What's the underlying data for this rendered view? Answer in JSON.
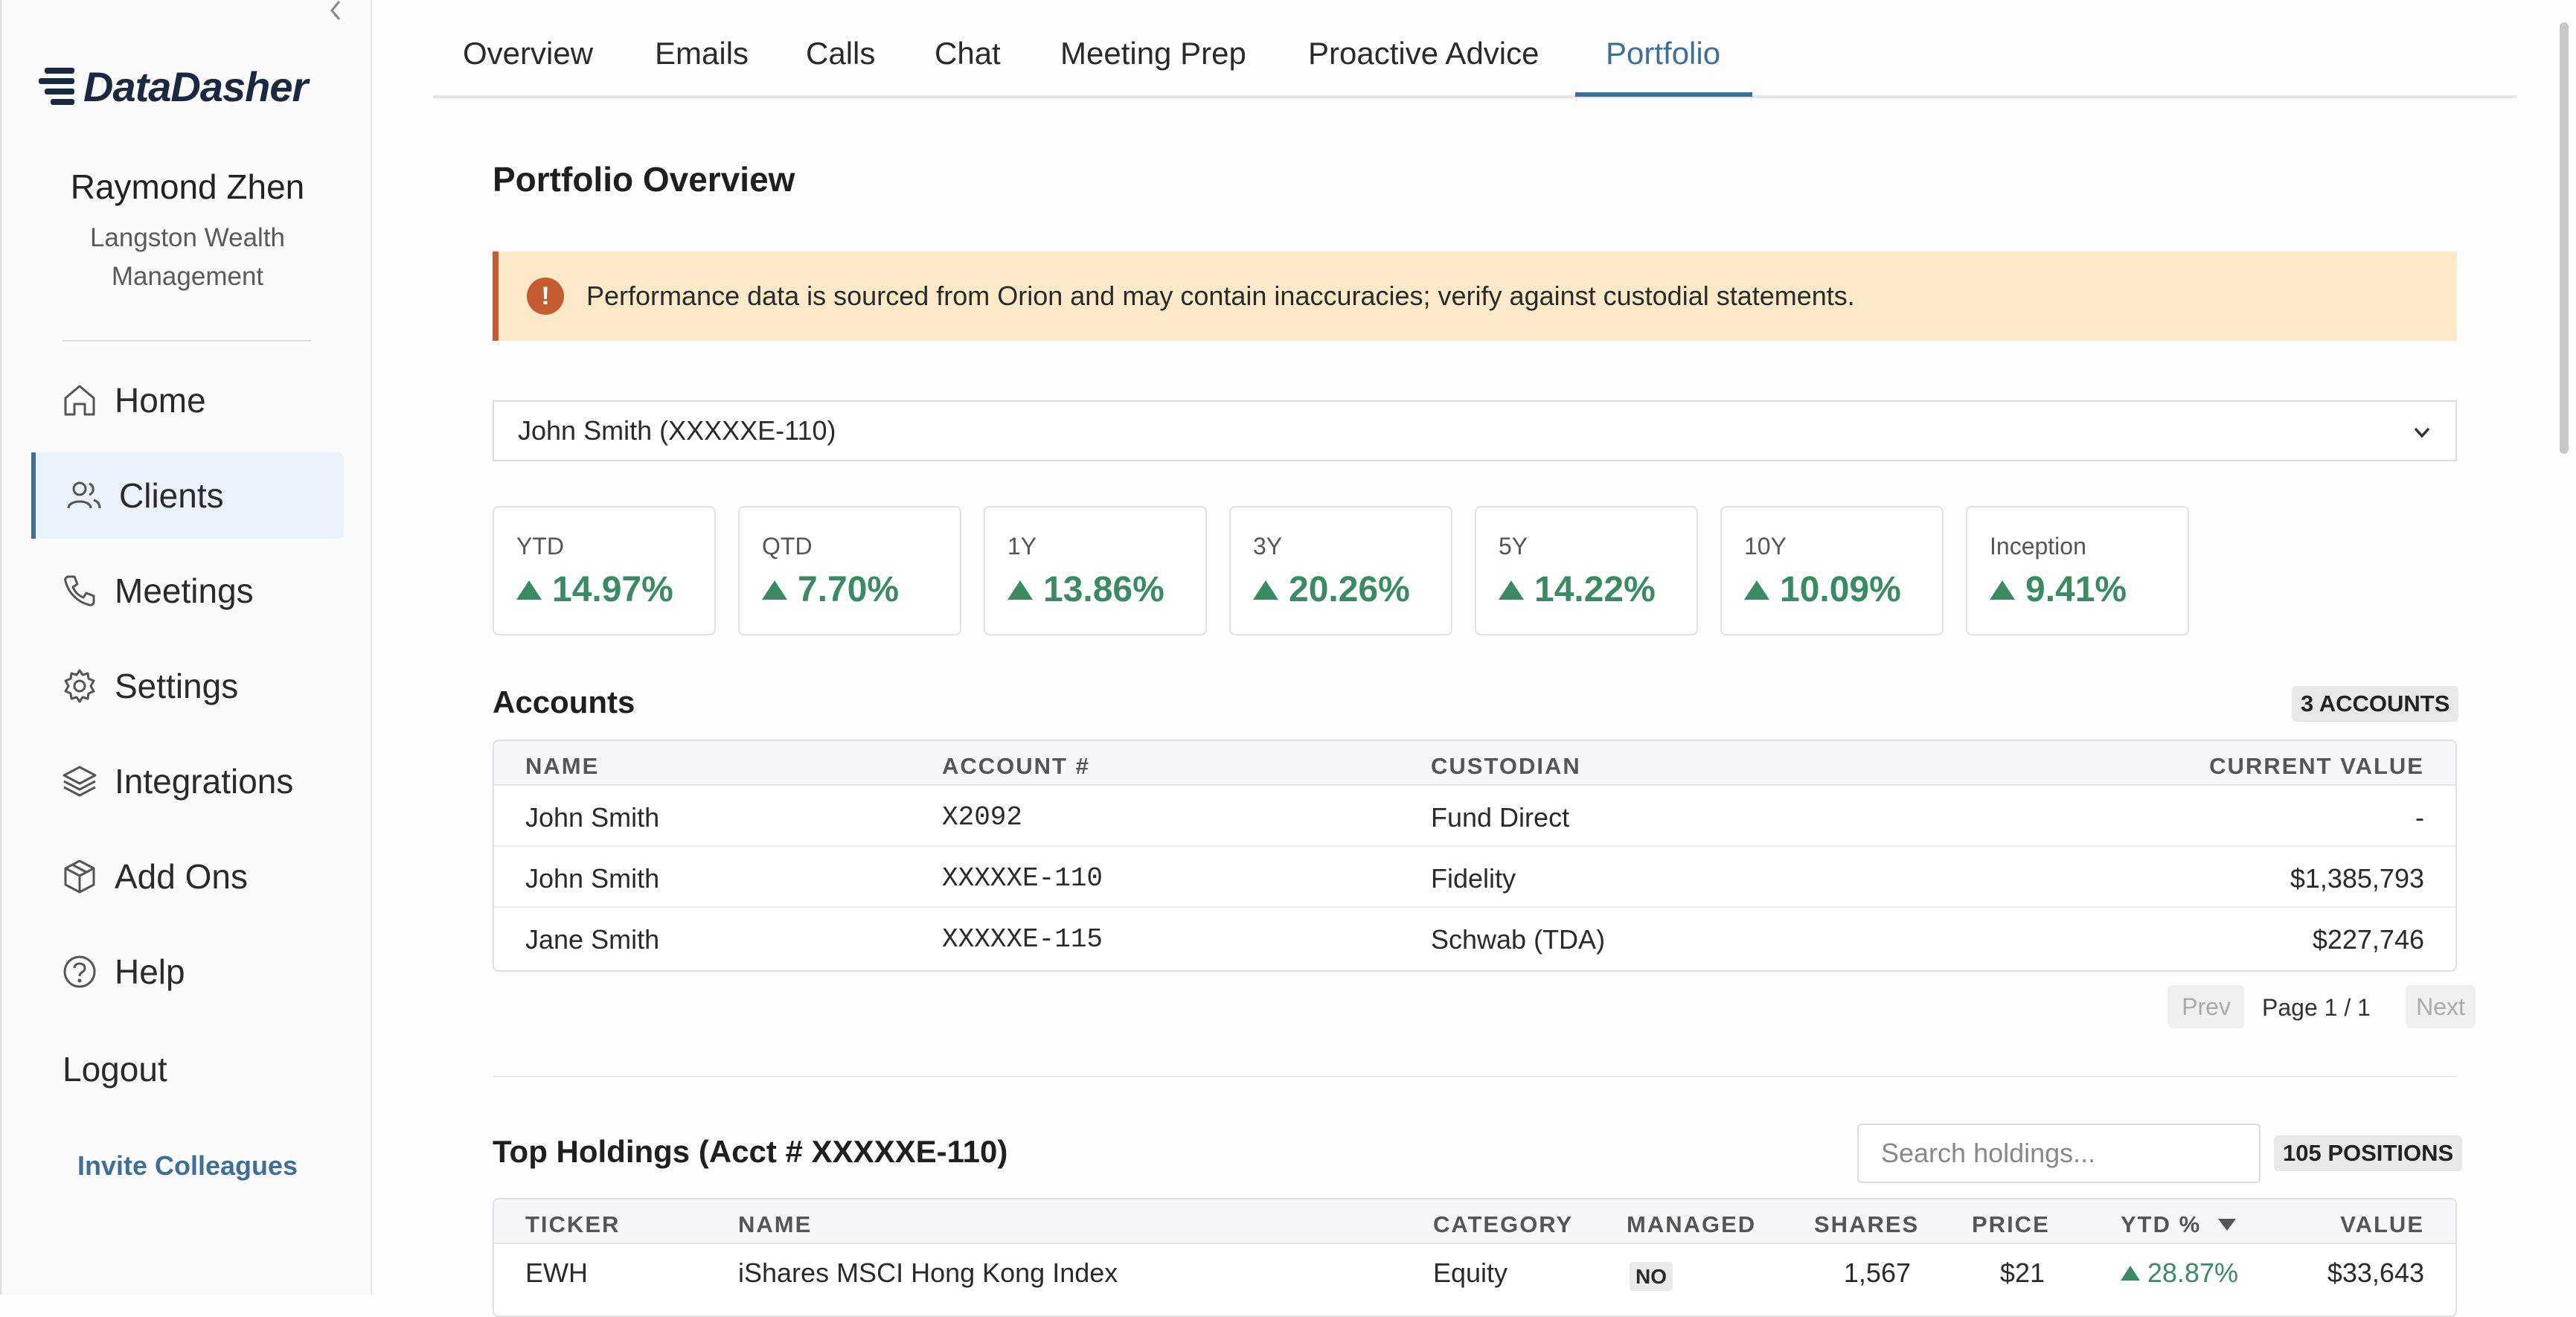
{
  "sidebar": {
    "brand": "DataDasher",
    "user_name": "Raymond Zhen",
    "org": "Langston Wealth Management",
    "nav": [
      {
        "label": "Home",
        "icon": "home-icon"
      },
      {
        "label": "Clients",
        "icon": "users-icon",
        "active": true
      },
      {
        "label": "Meetings",
        "icon": "phone-icon"
      },
      {
        "label": "Settings",
        "icon": "gear-icon"
      },
      {
        "label": "Integrations",
        "icon": "layers-icon"
      },
      {
        "label": "Add Ons",
        "icon": "package-icon"
      },
      {
        "label": "Help",
        "icon": "help-icon"
      }
    ],
    "logout": "Logout",
    "invite": "Invite Colleagues"
  },
  "tabs": [
    "Overview",
    "Emails",
    "Calls",
    "Chat",
    "Meeting Prep",
    "Proactive Advice",
    "Portfolio"
  ],
  "active_tab": "Portfolio",
  "page_title": "Portfolio Overview",
  "alert": "Performance data is sourced from Orion and may contain inaccuracies; verify against custodial statements.",
  "account_select": "John Smith (XXXXXE-110)",
  "performance": [
    {
      "label": "YTD",
      "value": "14.97%"
    },
    {
      "label": "QTD",
      "value": "7.70%"
    },
    {
      "label": "1Y",
      "value": "13.86%"
    },
    {
      "label": "3Y",
      "value": "20.26%"
    },
    {
      "label": "5Y",
      "value": "14.22%"
    },
    {
      "label": "10Y",
      "value": "10.09%"
    },
    {
      "label": "Inception",
      "value": "9.41%"
    }
  ],
  "accounts": {
    "title": "Accounts",
    "count": "3 ACCOUNTS",
    "headers": [
      "NAME",
      "ACCOUNT #",
      "CUSTODIAN",
      "CURRENT VALUE"
    ],
    "rows": [
      [
        "John Smith",
        "X2092",
        "Fund Direct",
        "-"
      ],
      [
        "John Smith",
        "XXXXXE-110",
        "Fidelity",
        "$1,385,793"
      ],
      [
        "Jane Smith",
        "XXXXXE-115",
        "Schwab (TDA)",
        "$227,746"
      ]
    ],
    "pager": {
      "prev": "Prev",
      "page": "Page 1 / 1",
      "next": "Next"
    }
  },
  "holdings": {
    "title": "Top Holdings (Acct # XXXXXE-110)",
    "search_placeholder": "Search holdings...",
    "count": "105 POSITIONS",
    "headers": [
      "TICKER",
      "NAME",
      "CATEGORY",
      "MANAGED",
      "SHARES",
      "PRICE",
      "YTD %",
      "VALUE"
    ],
    "rows": [
      [
        "EWH",
        "iShares MSCI Hong Kong Index",
        "Equity",
        "NO",
        "1,567",
        "$21",
        "28.87%",
        "$33,643"
      ]
    ]
  },
  "colors": {
    "accent": "#3f6f98",
    "positive": "#3a8a63",
    "alert_bg": "#fbe9c8",
    "alert_icon": "#c65a30"
  }
}
